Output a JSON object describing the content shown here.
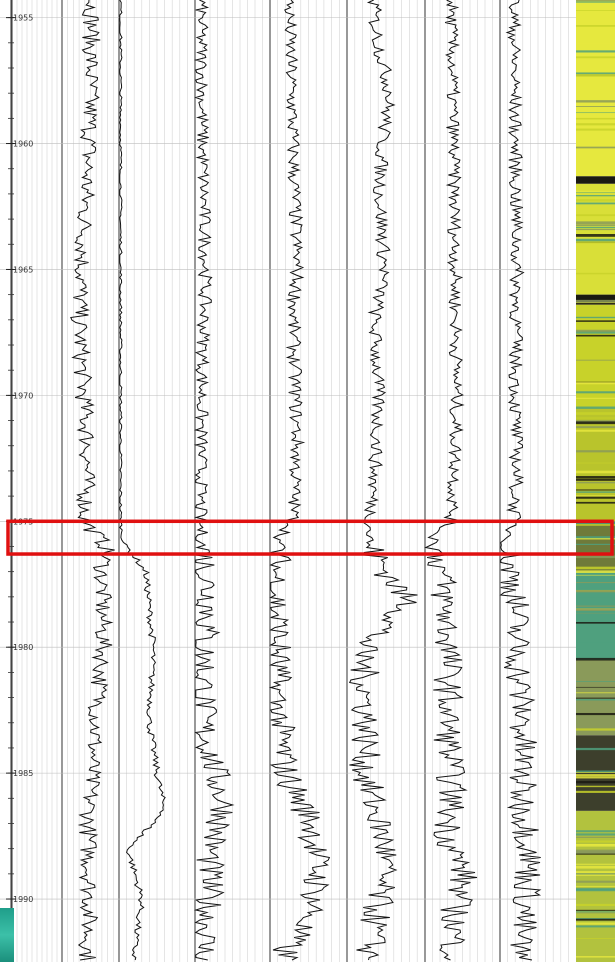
{
  "chart_data": {
    "type": "line",
    "title": "",
    "orientation": "vertical-depth",
    "depth_axis": {
      "label": "",
      "range": [
        1954.3,
        1992.5
      ],
      "ticks": [
        1955,
        1960,
        1965,
        1970,
        1975,
        1980,
        1985,
        1990
      ],
      "tick_labels": [
        "1955",
        "1960",
        "1965",
        "1970",
        "1975",
        "1980",
        "1985",
        "1990"
      ]
    },
    "grid": true,
    "legend": "none",
    "highlight_interval": {
      "top": 1975.0,
      "bottom": 1976.3,
      "color": "#e01010"
    },
    "tracks": [
      {
        "name": "",
        "kind": "curve",
        "depth": [
          1955,
          1960,
          1962,
          1965,
          1967,
          1970,
          1972,
          1975,
          1976,
          1977,
          1980,
          1983,
          1985,
          1987,
          1990,
          1992
        ],
        "values": [
          0.52,
          0.48,
          0.42,
          0.35,
          0.3,
          0.38,
          0.45,
          0.4,
          0.78,
          0.7,
          0.72,
          0.6,
          0.52,
          0.46,
          0.48,
          0.45
        ]
      },
      {
        "name": "",
        "kind": "curve",
        "depth": [
          1955,
          1960,
          1965,
          1970,
          1975,
          1975.8,
          1977,
          1980,
          1983,
          1985,
          1986.5,
          1988,
          1990,
          1992
        ],
        "values": [
          0.02,
          0.02,
          0.02,
          0.02,
          0.02,
          0.05,
          0.35,
          0.45,
          0.4,
          0.5,
          0.6,
          0.12,
          0.3,
          0.2
        ]
      },
      {
        "name": "",
        "kind": "curve",
        "depth": [
          1955,
          1960,
          1965,
          1970,
          1975,
          1976,
          1978.3,
          1980,
          1983,
          1986.5,
          1988,
          1990,
          1992
        ],
        "values": [
          0.08,
          0.1,
          0.14,
          0.09,
          0.07,
          0.1,
          0.2,
          0.12,
          0.1,
          0.4,
          0.2,
          0.18,
          0.12
        ]
      },
      {
        "name": "",
        "kind": "curve",
        "depth": [
          1955,
          1958,
          1960,
          1962,
          1965,
          1967,
          1970,
          1972,
          1975,
          1975.8,
          1977,
          1980,
          1982,
          1985,
          1987,
          1989,
          1990.5,
          1992
        ],
        "values": [
          0.25,
          0.28,
          0.3,
          0.32,
          0.35,
          0.3,
          0.33,
          0.35,
          0.3,
          0.1,
          0.08,
          0.1,
          0.08,
          0.2,
          0.55,
          0.62,
          0.55,
          0.2
        ]
      },
      {
        "name": "",
        "kind": "curve",
        "depth": [
          1955,
          1956,
          1958,
          1960,
          1962,
          1965,
          1967,
          1970,
          1972,
          1975,
          1976,
          1978.3,
          1980,
          1983,
          1985,
          1988,
          1990,
          1992
        ],
        "values": [
          0.35,
          0.4,
          0.55,
          0.45,
          0.42,
          0.48,
          0.35,
          0.4,
          0.38,
          0.3,
          0.28,
          0.8,
          0.2,
          0.25,
          0.22,
          0.5,
          0.4,
          0.3
        ]
      },
      {
        "name": "",
        "kind": "curve",
        "depth": [
          1955,
          1960,
          1965,
          1970,
          1973,
          1975,
          1975.6,
          1977,
          1980,
          1983,
          1986,
          1987.5,
          1989,
          1990.5,
          1992
        ],
        "values": [
          0.35,
          0.38,
          0.4,
          0.42,
          0.4,
          0.35,
          0.12,
          0.22,
          0.32,
          0.3,
          0.36,
          0.3,
          0.52,
          0.4,
          0.38
        ]
      },
      {
        "name": "",
        "kind": "curve",
        "depth": [
          1955,
          1960,
          1965,
          1970,
          1973,
          1975,
          1976,
          1978,
          1980,
          1983,
          1986,
          1988,
          1990,
          1992
        ],
        "values": [
          0.18,
          0.2,
          0.22,
          0.2,
          0.22,
          0.18,
          0.08,
          0.2,
          0.22,
          0.3,
          0.28,
          0.4,
          0.35,
          0.25
        ]
      },
      {
        "name": "",
        "kind": "image",
        "palette": [
          "#e6e83e",
          "#c8d22a",
          "#1a1a12",
          "#4fa07e",
          "#8a9a5a"
        ],
        "bands": [
          {
            "top": 1954.3,
            "bottom": 1961.3,
            "color": "#e6e83e"
          },
          {
            "top": 1961.3,
            "bottom": 1961.6,
            "color": "#1a1a12"
          },
          {
            "top": 1961.6,
            "bottom": 1966.0,
            "color": "#d9df38"
          },
          {
            "top": 1966.0,
            "bottom": 1966.4,
            "color": "#1a1a12"
          },
          {
            "top": 1966.4,
            "bottom": 1970.5,
            "color": "#c8d22a"
          },
          {
            "top": 1970.5,
            "bottom": 1975.0,
            "color": "#b9c42c"
          },
          {
            "top": 1975.0,
            "bottom": 1977.0,
            "color": "#6f7a3a"
          },
          {
            "top": 1977.0,
            "bottom": 1980.5,
            "color": "#4fa07e"
          },
          {
            "top": 1980.5,
            "bottom": 1983.5,
            "color": "#8a9a5a"
          },
          {
            "top": 1983.5,
            "bottom": 1986.5,
            "color": "#3d3f2c"
          },
          {
            "top": 1986.5,
            "bottom": 1992.5,
            "color": "#b2c23e"
          }
        ]
      }
    ]
  }
}
